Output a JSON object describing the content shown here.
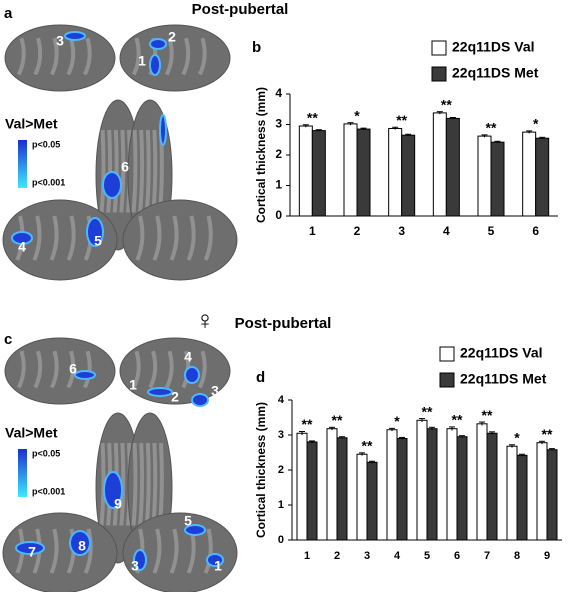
{
  "panel_a": "a",
  "panel_b": "b",
  "panel_c": "c",
  "panel_d": "d",
  "title_top": "Post-pubertal",
  "title_bottom": "Post-pubertal",
  "female_symbol": "♀",
  "brain_legend_a": {
    "title": "Val>Met",
    "high": "p<0.05",
    "low": "p<0.001"
  },
  "brain_legend_c": {
    "title": "Val>Met",
    "high": "p<0.05",
    "low": "p<0.001"
  },
  "brain_labels_a": [
    "3",
    "2",
    "1",
    "6",
    "4",
    "5"
  ],
  "brain_labels_c": [
    "6",
    "4",
    "1",
    "2",
    "3",
    "9",
    "7",
    "8",
    "5",
    "3",
    "1"
  ],
  "chart_data": [
    {
      "type": "bar",
      "ylabel": "Cortical thickness (mm)",
      "categories": [
        "1",
        "2",
        "3",
        "4",
        "5",
        "6"
      ],
      "series": [
        {
          "name": "22q11DS Val",
          "color": "#ffffff",
          "values": [
            2.95,
            3.02,
            2.87,
            3.38,
            2.62,
            2.75
          ],
          "errors": [
            0.04,
            0.04,
            0.04,
            0.04,
            0.04,
            0.04
          ]
        },
        {
          "name": "22q11DS Met",
          "color": "#3a3a3a",
          "values": [
            2.8,
            2.85,
            2.65,
            3.2,
            2.42,
            2.55
          ],
          "errors": [
            0.03,
            0.03,
            0.03,
            0.03,
            0.03,
            0.03
          ]
        }
      ],
      "annotations": [
        "**",
        "*",
        "**",
        "**",
        "**",
        "*"
      ],
      "ylim": [
        0,
        4
      ],
      "yticks": [
        0,
        1,
        2,
        3,
        4
      ]
    },
    {
      "type": "bar",
      "ylabel": "Cortical thickness (mm)",
      "categories": [
        "1",
        "2",
        "3",
        "4",
        "5",
        "6",
        "7",
        "8",
        "9"
      ],
      "series": [
        {
          "name": "22q11DS Val",
          "color": "#ffffff",
          "values": [
            3.05,
            3.18,
            2.45,
            3.15,
            3.42,
            3.18,
            3.32,
            2.68,
            2.78
          ],
          "errors": [
            0.05,
            0.04,
            0.04,
            0.04,
            0.05,
            0.05,
            0.05,
            0.04,
            0.04
          ]
        },
        {
          "name": "22q11DS Met",
          "color": "#3a3a3a",
          "values": [
            2.8,
            2.92,
            2.22,
            2.9,
            3.18,
            2.95,
            3.05,
            2.42,
            2.58
          ],
          "errors": [
            0.03,
            0.03,
            0.03,
            0.03,
            0.04,
            0.03,
            0.04,
            0.03,
            0.03
          ]
        }
      ],
      "annotations": [
        "**",
        "**",
        "**",
        "*",
        "**",
        "**",
        "**",
        "*",
        "**"
      ],
      "ylim": [
        0,
        4
      ],
      "yticks": [
        0,
        1,
        2,
        3,
        4
      ]
    }
  ]
}
